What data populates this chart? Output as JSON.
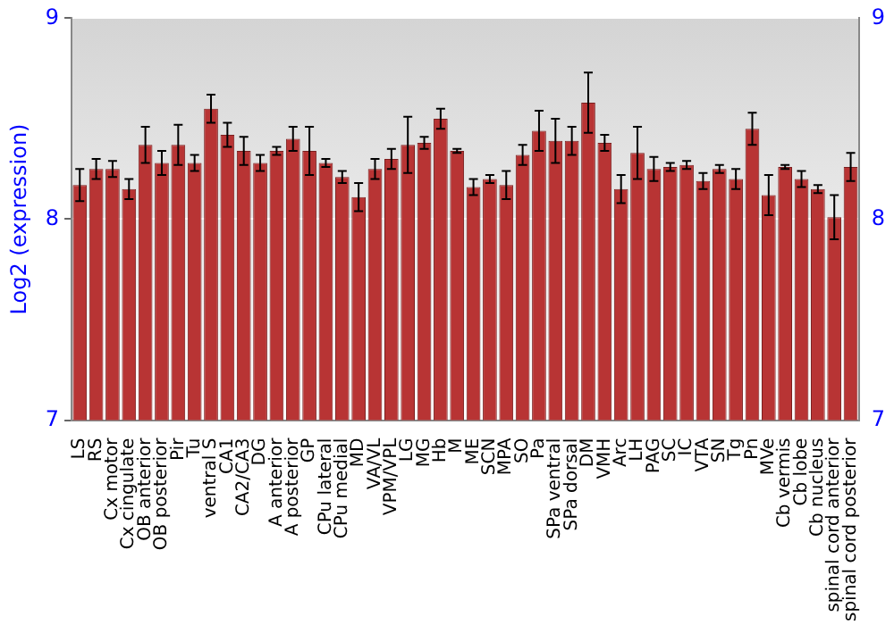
{
  "chart_data": {
    "type": "bar",
    "ylabel": "Log2 (expression)",
    "categories": [
      "LS",
      "RS",
      "Cx motor",
      "Cx cingulate",
      "OB anterior",
      "OB posterior",
      "Pir",
      "Tu",
      "ventral S",
      "CA1",
      "CA2/CA3",
      "DG",
      "A anterior",
      "A posterior",
      "GP",
      "CPu lateral",
      "CPu medial",
      "MD",
      "VA/VL",
      "VPM/VPL",
      "LG",
      "MG",
      "Hb",
      "M",
      "ME",
      "SCN",
      "MPA",
      "SO",
      "Pa",
      "SPa ventral",
      "SPa dorsal",
      "DM",
      "VMH",
      "Arc",
      "LH",
      "PAG",
      "SC",
      "IC",
      "VTA",
      "SN",
      "Tg",
      "Pn",
      "MVe",
      "Cb vermis",
      "Cb lobe",
      "Cb nucleus",
      "spinal cord anterior",
      "spinal cord posterior"
    ],
    "values": [
      8.17,
      8.25,
      8.25,
      8.15,
      8.37,
      8.28,
      8.37,
      8.28,
      8.55,
      8.42,
      8.34,
      8.28,
      8.34,
      8.4,
      8.34,
      8.28,
      8.21,
      8.11,
      8.25,
      8.3,
      8.37,
      8.38,
      8.5,
      8.34,
      8.16,
      8.2,
      8.17,
      8.32,
      8.44,
      8.39,
      8.39,
      8.58,
      8.38,
      8.15,
      8.33,
      8.25,
      8.26,
      8.27,
      8.19,
      8.25,
      8.2,
      8.45,
      8.12,
      8.26,
      8.2,
      8.15,
      8.01,
      8.26
    ],
    "errors": [
      0.08,
      0.05,
      0.04,
      0.05,
      0.09,
      0.06,
      0.1,
      0.04,
      0.07,
      0.06,
      0.07,
      0.04,
      0.02,
      0.06,
      0.12,
      0.02,
      0.03,
      0.07,
      0.05,
      0.05,
      0.14,
      0.03,
      0.05,
      0.01,
      0.04,
      0.02,
      0.07,
      0.05,
      0.1,
      0.11,
      0.07,
      0.15,
      0.04,
      0.07,
      0.13,
      0.06,
      0.02,
      0.02,
      0.04,
      0.02,
      0.05,
      0.08,
      0.1,
      0.01,
      0.04,
      0.02,
      0.11,
      0.07
    ],
    "color": "#b83434",
    "ylim": [
      7,
      9
    ],
    "yticks": [
      7,
      8,
      9
    ],
    "y2lim": [
      7,
      9
    ],
    "y2ticks": [
      7,
      8,
      9
    ],
    "grid": "y",
    "legend": false
  }
}
